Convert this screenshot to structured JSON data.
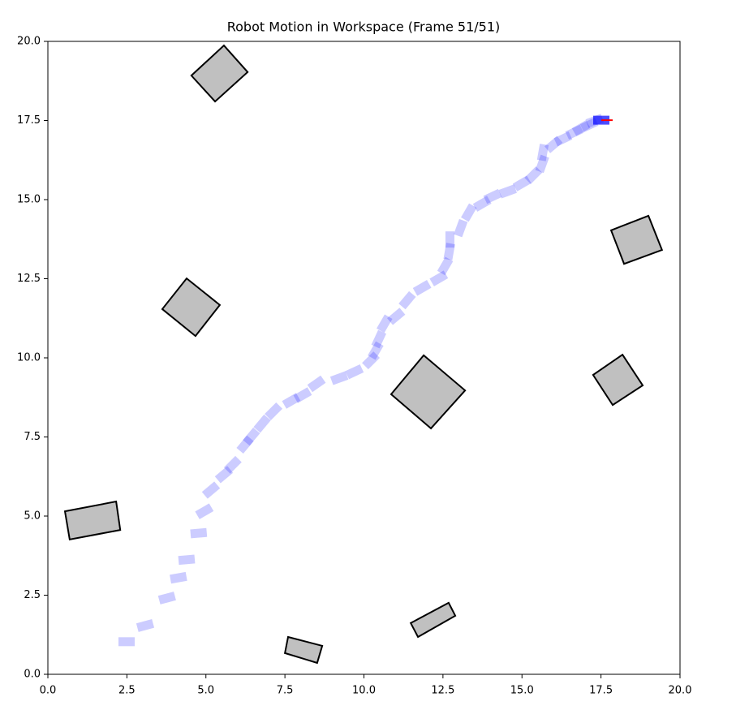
{
  "chart_data": {
    "type": "workspace",
    "title": "Robot Motion in Workspace (Frame 51/51)",
    "xlim": [
      0,
      20
    ],
    "ylim": [
      0,
      20
    ],
    "xticks": [
      {
        "value": 0,
        "label": "0.0"
      },
      {
        "value": 2.5,
        "label": "2.5"
      },
      {
        "value": 5,
        "label": "5.0"
      },
      {
        "value": 7.5,
        "label": "7.5"
      },
      {
        "value": 10,
        "label": "10.0"
      },
      {
        "value": 12.5,
        "label": "12.5"
      },
      {
        "value": 15,
        "label": "15.0"
      },
      {
        "value": 17.5,
        "label": "17.5"
      },
      {
        "value": 20,
        "label": "20.0"
      }
    ],
    "yticks": [
      {
        "value": 0,
        "label": "0.0"
      },
      {
        "value": 2.5,
        "label": "2.5"
      },
      {
        "value": 5,
        "label": "5.0"
      },
      {
        "value": 7.5,
        "label": "7.5"
      },
      {
        "value": 10,
        "label": "10.0"
      },
      {
        "value": 12.5,
        "label": "12.5"
      },
      {
        "value": 15,
        "label": "15.0"
      },
      {
        "value": 17.5,
        "label": "17.5"
      },
      {
        "value": 20,
        "label": "20.0"
      }
    ],
    "obstacle_color": "#c0c0c0",
    "obstacle_edge": "#000000",
    "obstacles": [
      {
        "x": [
          5.57,
          6.32,
          5.29,
          4.54
        ],
        "y": [
          19.87,
          19.03,
          18.1,
          18.92
        ]
      },
      {
        "x": [
          4.39,
          5.44,
          4.67,
          3.62
        ],
        "y": [
          12.51,
          11.67,
          10.69,
          11.54
        ]
      },
      {
        "x": [
          11.89,
          13.2,
          12.12,
          10.86
        ],
        "y": [
          10.08,
          8.97,
          7.77,
          8.85
        ]
      },
      {
        "x": [
          19.0,
          19.43,
          18.23,
          17.82
        ],
        "y": [
          14.49,
          13.41,
          12.97,
          14.03
        ]
      },
      {
        "x": [
          18.18,
          18.82,
          17.87,
          17.25
        ],
        "y": [
          10.1,
          9.13,
          8.51,
          9.46
        ]
      },
      {
        "x": [
          0.54,
          2.16,
          2.29,
          0.69
        ],
        "y": [
          5.15,
          5.46,
          4.56,
          4.26
        ]
      },
      {
        "x": [
          7.6,
          8.68,
          8.52,
          7.5
        ],
        "y": [
          1.18,
          0.9,
          0.36,
          0.67
        ]
      },
      {
        "x": [
          11.48,
          12.68,
          12.89,
          11.71
        ],
        "y": [
          1.62,
          2.26,
          1.85,
          1.18
        ]
      }
    ],
    "path": {
      "color": "#0000ff",
      "heading_color": "#ff0000",
      "x": [
        2.49,
        3.08,
        3.77,
        4.13,
        4.39,
        4.77,
        4.95,
        5.16,
        5.57,
        5.85,
        6.24,
        6.44,
        6.78,
        7.14,
        7.7,
        8.06,
        8.5,
        9.22,
        9.7,
        10.22,
        10.37,
        10.47,
        10.65,
        11.02,
        11.37,
        11.84,
        12.37,
        12.57,
        12.7,
        12.72,
        13.06,
        13.32,
        13.74,
        14.07,
        14.55,
        15.0,
        15.36,
        15.64,
        15.66,
        16.0,
        16.3,
        16.66,
        16.87,
        17.13,
        17.3,
        17.51
      ],
      "y": [
        1.03,
        1.54,
        2.41,
        3.05,
        3.62,
        4.46,
        5.15,
        5.82,
        6.31,
        6.62,
        7.26,
        7.51,
        7.92,
        8.31,
        8.64,
        8.82,
        9.18,
        9.36,
        9.56,
        9.92,
        10.23,
        10.59,
        11.08,
        11.31,
        11.82,
        12.21,
        12.51,
        12.9,
        13.36,
        13.74,
        14.1,
        14.59,
        14.87,
        15.1,
        15.26,
        15.51,
        15.77,
        16.13,
        16.49,
        16.74,
        16.92,
        17.13,
        17.26,
        17.36,
        17.49,
        17.51
      ],
      "theta": [
        0,
        15,
        15,
        10,
        5,
        5,
        30,
        40,
        40,
        45,
        50,
        50,
        50,
        45,
        30,
        30,
        35,
        20,
        25,
        45,
        60,
        65,
        60,
        40,
        50,
        30,
        30,
        60,
        80,
        90,
        70,
        60,
        30,
        25,
        20,
        30,
        45,
        70,
        80,
        40,
        25,
        25,
        30,
        25,
        20,
        0
      ]
    }
  }
}
